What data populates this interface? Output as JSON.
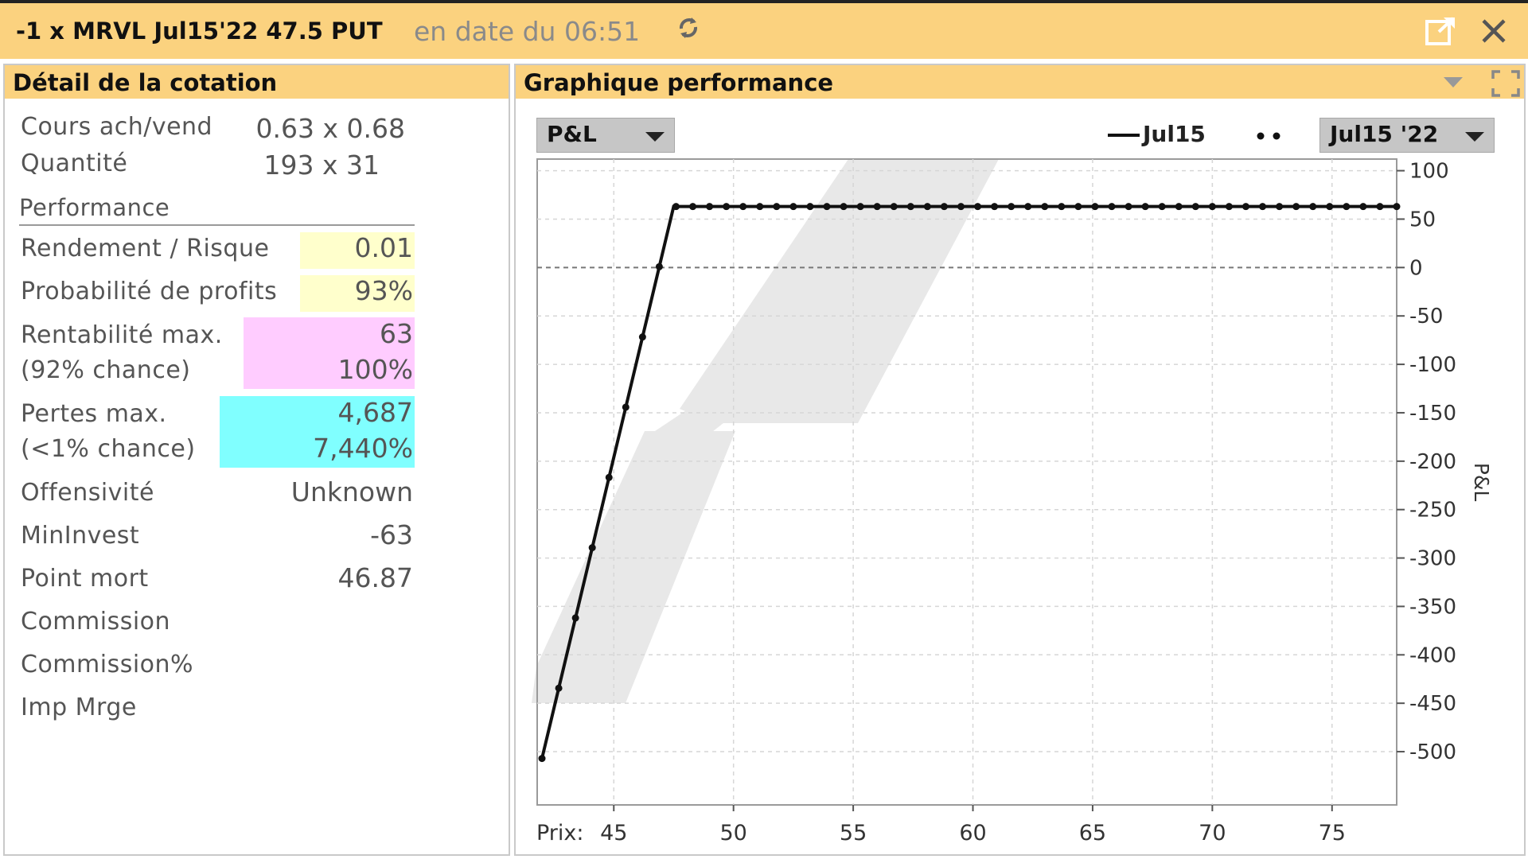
{
  "window": {
    "title": "-1 x MRVL Jul15'22 47.5 PUT",
    "date_text": "en date du 06:51",
    "icons": [
      "refresh-icon",
      "popout-icon",
      "close-icon"
    ]
  },
  "quote_detail": {
    "header": "Détail de la cotation",
    "bid_ask_label": "Cours ach/vend",
    "bid_ask_value": "0.63 x 0.68",
    "quantity_label": "Quantité",
    "quantity_value": "193 x 31",
    "performance_label": "Performance",
    "return_risk_label": "Rendement / Risque",
    "return_risk_value": "0.01",
    "profit_prob_label": "Probabilité de profits",
    "profit_prob_value": "93%",
    "max_profit_label": "Rentabilité max.",
    "max_profit_value": "63",
    "max_profit_chance_label": "(92% chance)",
    "max_profit_pct": "100%",
    "max_loss_label": "Pertes max.",
    "max_loss_value": "4,687",
    "max_loss_chance_label": "(<1% chance)",
    "max_loss_pct": "7,440%",
    "aggressiveness_label": "Offensivité",
    "aggressiveness_value": "Unknown",
    "min_invest_label": "MinInvest",
    "min_invest_value": "-63",
    "breakeven_label": "Point mort",
    "breakeven_value": "46.87",
    "commission_label": "Commission",
    "commission_pct_label": "Commission%",
    "imp_margin_label": "Imp Mrge",
    "colors": {
      "yellow": "#ffffcc",
      "pink": "#ffccff",
      "cyan": "#80ffff"
    }
  },
  "performance_chart": {
    "header": "Graphique performance",
    "metric_dropdown": "P&L",
    "legend_line": "Jul15",
    "date_dropdown": "Jul15 '22",
    "xlabel": "Prix:",
    "ylabel": "P&L"
  },
  "chart_data": {
    "type": "line",
    "xlim": [
      41.8,
      77.7
    ],
    "ylim": [
      -555,
      112
    ],
    "xticks": [
      45,
      50,
      55,
      60,
      65,
      70,
      75
    ],
    "yticks": [
      100,
      50,
      0,
      -50,
      -100,
      -150,
      -200,
      -250,
      -300,
      -350,
      -400,
      -450,
      -500
    ],
    "grid": true,
    "legend_position": "top-right",
    "series": [
      {
        "name": "Jul15",
        "x": [
          42.0,
          47.5,
          77.7
        ],
        "y": [
          -507,
          63,
          63
        ]
      }
    ]
  }
}
